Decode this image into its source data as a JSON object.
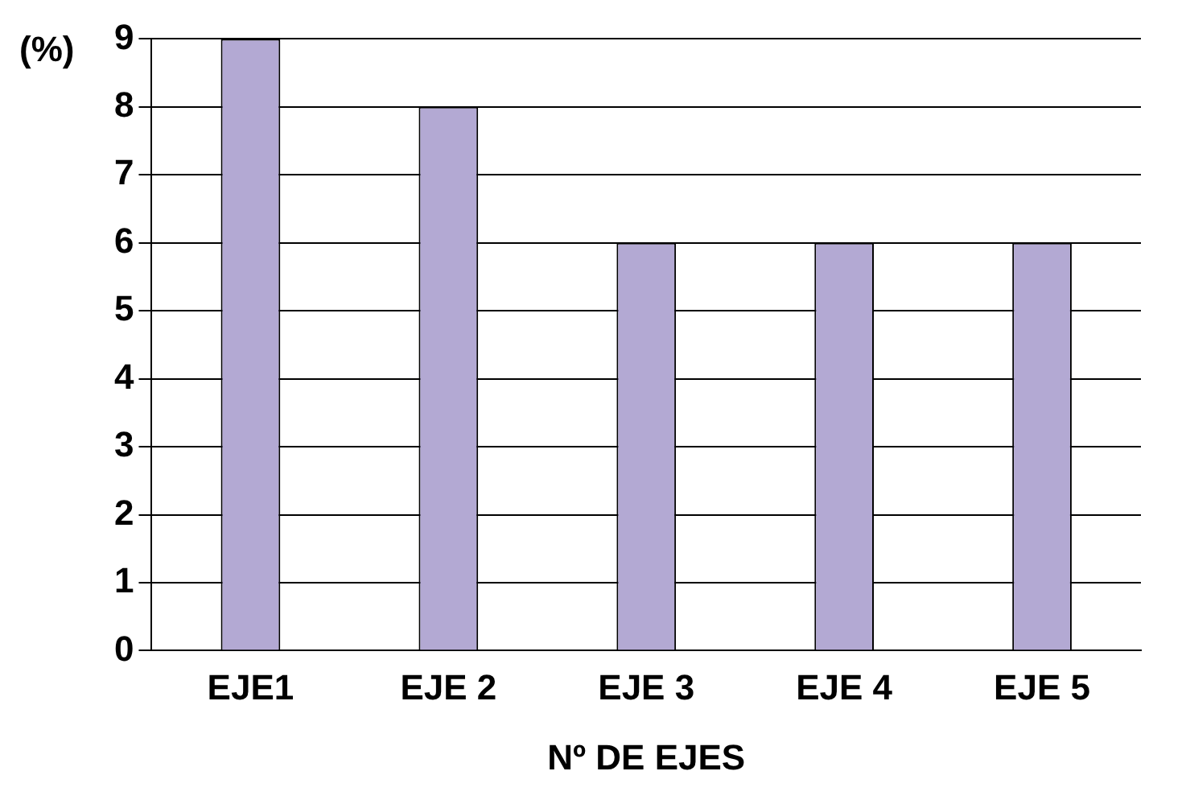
{
  "chart_data": {
    "type": "bar",
    "ylabel": "(%)",
    "xlabel": "Nº DE EJES",
    "categories": [
      "EJE1",
      "EJE 2",
      "EJE 3",
      "EJE 4",
      "EJE 5"
    ],
    "values": [
      9,
      8,
      6,
      6,
      6
    ],
    "color": "#b3a9d3",
    "ylim": [
      0,
      9
    ],
    "yticks": [
      0,
      1,
      2,
      3,
      4,
      5,
      6,
      7,
      8,
      9
    ],
    "grid": "y",
    "legend": false
  }
}
